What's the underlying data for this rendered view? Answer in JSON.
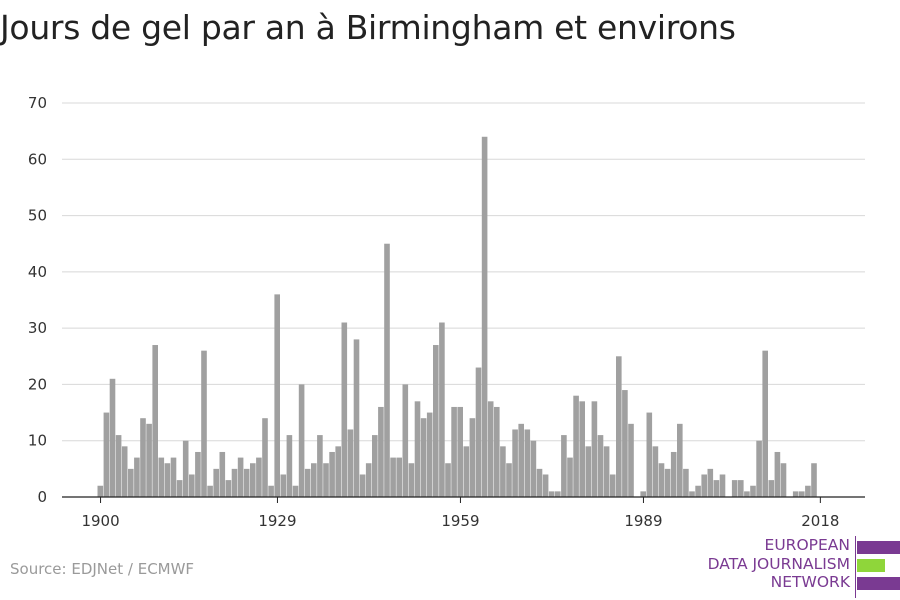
{
  "title": "Jours de gel par an à Birmingham et environs",
  "source": "Source: EDJNet / ECMWF",
  "logo": {
    "line1": "EUROPEAN",
    "line2": "DATA JOURNALISM",
    "line3": "NETWORK"
  },
  "colors": {
    "bar": "#a0a0a0",
    "grid": "#d8d8d8",
    "axis": "#222222",
    "logo_purple": "#7a3a92",
    "logo_green": "#8fd63a"
  },
  "chart_data": {
    "type": "bar",
    "title": "Jours de gel par an à Birmingham et environs",
    "xlabel": "",
    "ylabel": "",
    "ylim": [
      0,
      70
    ],
    "yticks": [
      0,
      10,
      20,
      30,
      40,
      50,
      60,
      70
    ],
    "xtick_labels": [
      1900,
      1929,
      1959,
      1989,
      2018
    ],
    "grid": true,
    "x_start": 1900,
    "values": [
      2,
      15,
      21,
      11,
      9,
      5,
      7,
      14,
      13,
      27,
      7,
      6,
      7,
      3,
      10,
      4,
      8,
      26,
      2,
      5,
      8,
      3,
      5,
      7,
      5,
      6,
      7,
      14,
      2,
      36,
      4,
      11,
      2,
      20,
      5,
      6,
      11,
      6,
      8,
      9,
      31,
      12,
      28,
      4,
      6,
      11,
      16,
      45,
      7,
      7,
      20,
      6,
      17,
      14,
      15,
      27,
      31,
      6,
      16,
      16,
      9,
      14,
      23,
      64,
      17,
      16,
      9,
      6,
      12,
      13,
      12,
      10,
      5,
      4,
      1,
      1,
      11,
      7,
      18,
      17,
      9,
      17,
      11,
      9,
      4,
      25,
      19,
      13,
      0,
      1,
      15,
      9,
      6,
      5,
      8,
      13,
      5,
      1,
      2,
      4,
      5,
      3,
      4,
      0,
      3,
      3,
      1,
      2,
      10,
      26,
      3,
      8,
      6,
      0,
      1,
      1,
      2,
      6
    ]
  }
}
